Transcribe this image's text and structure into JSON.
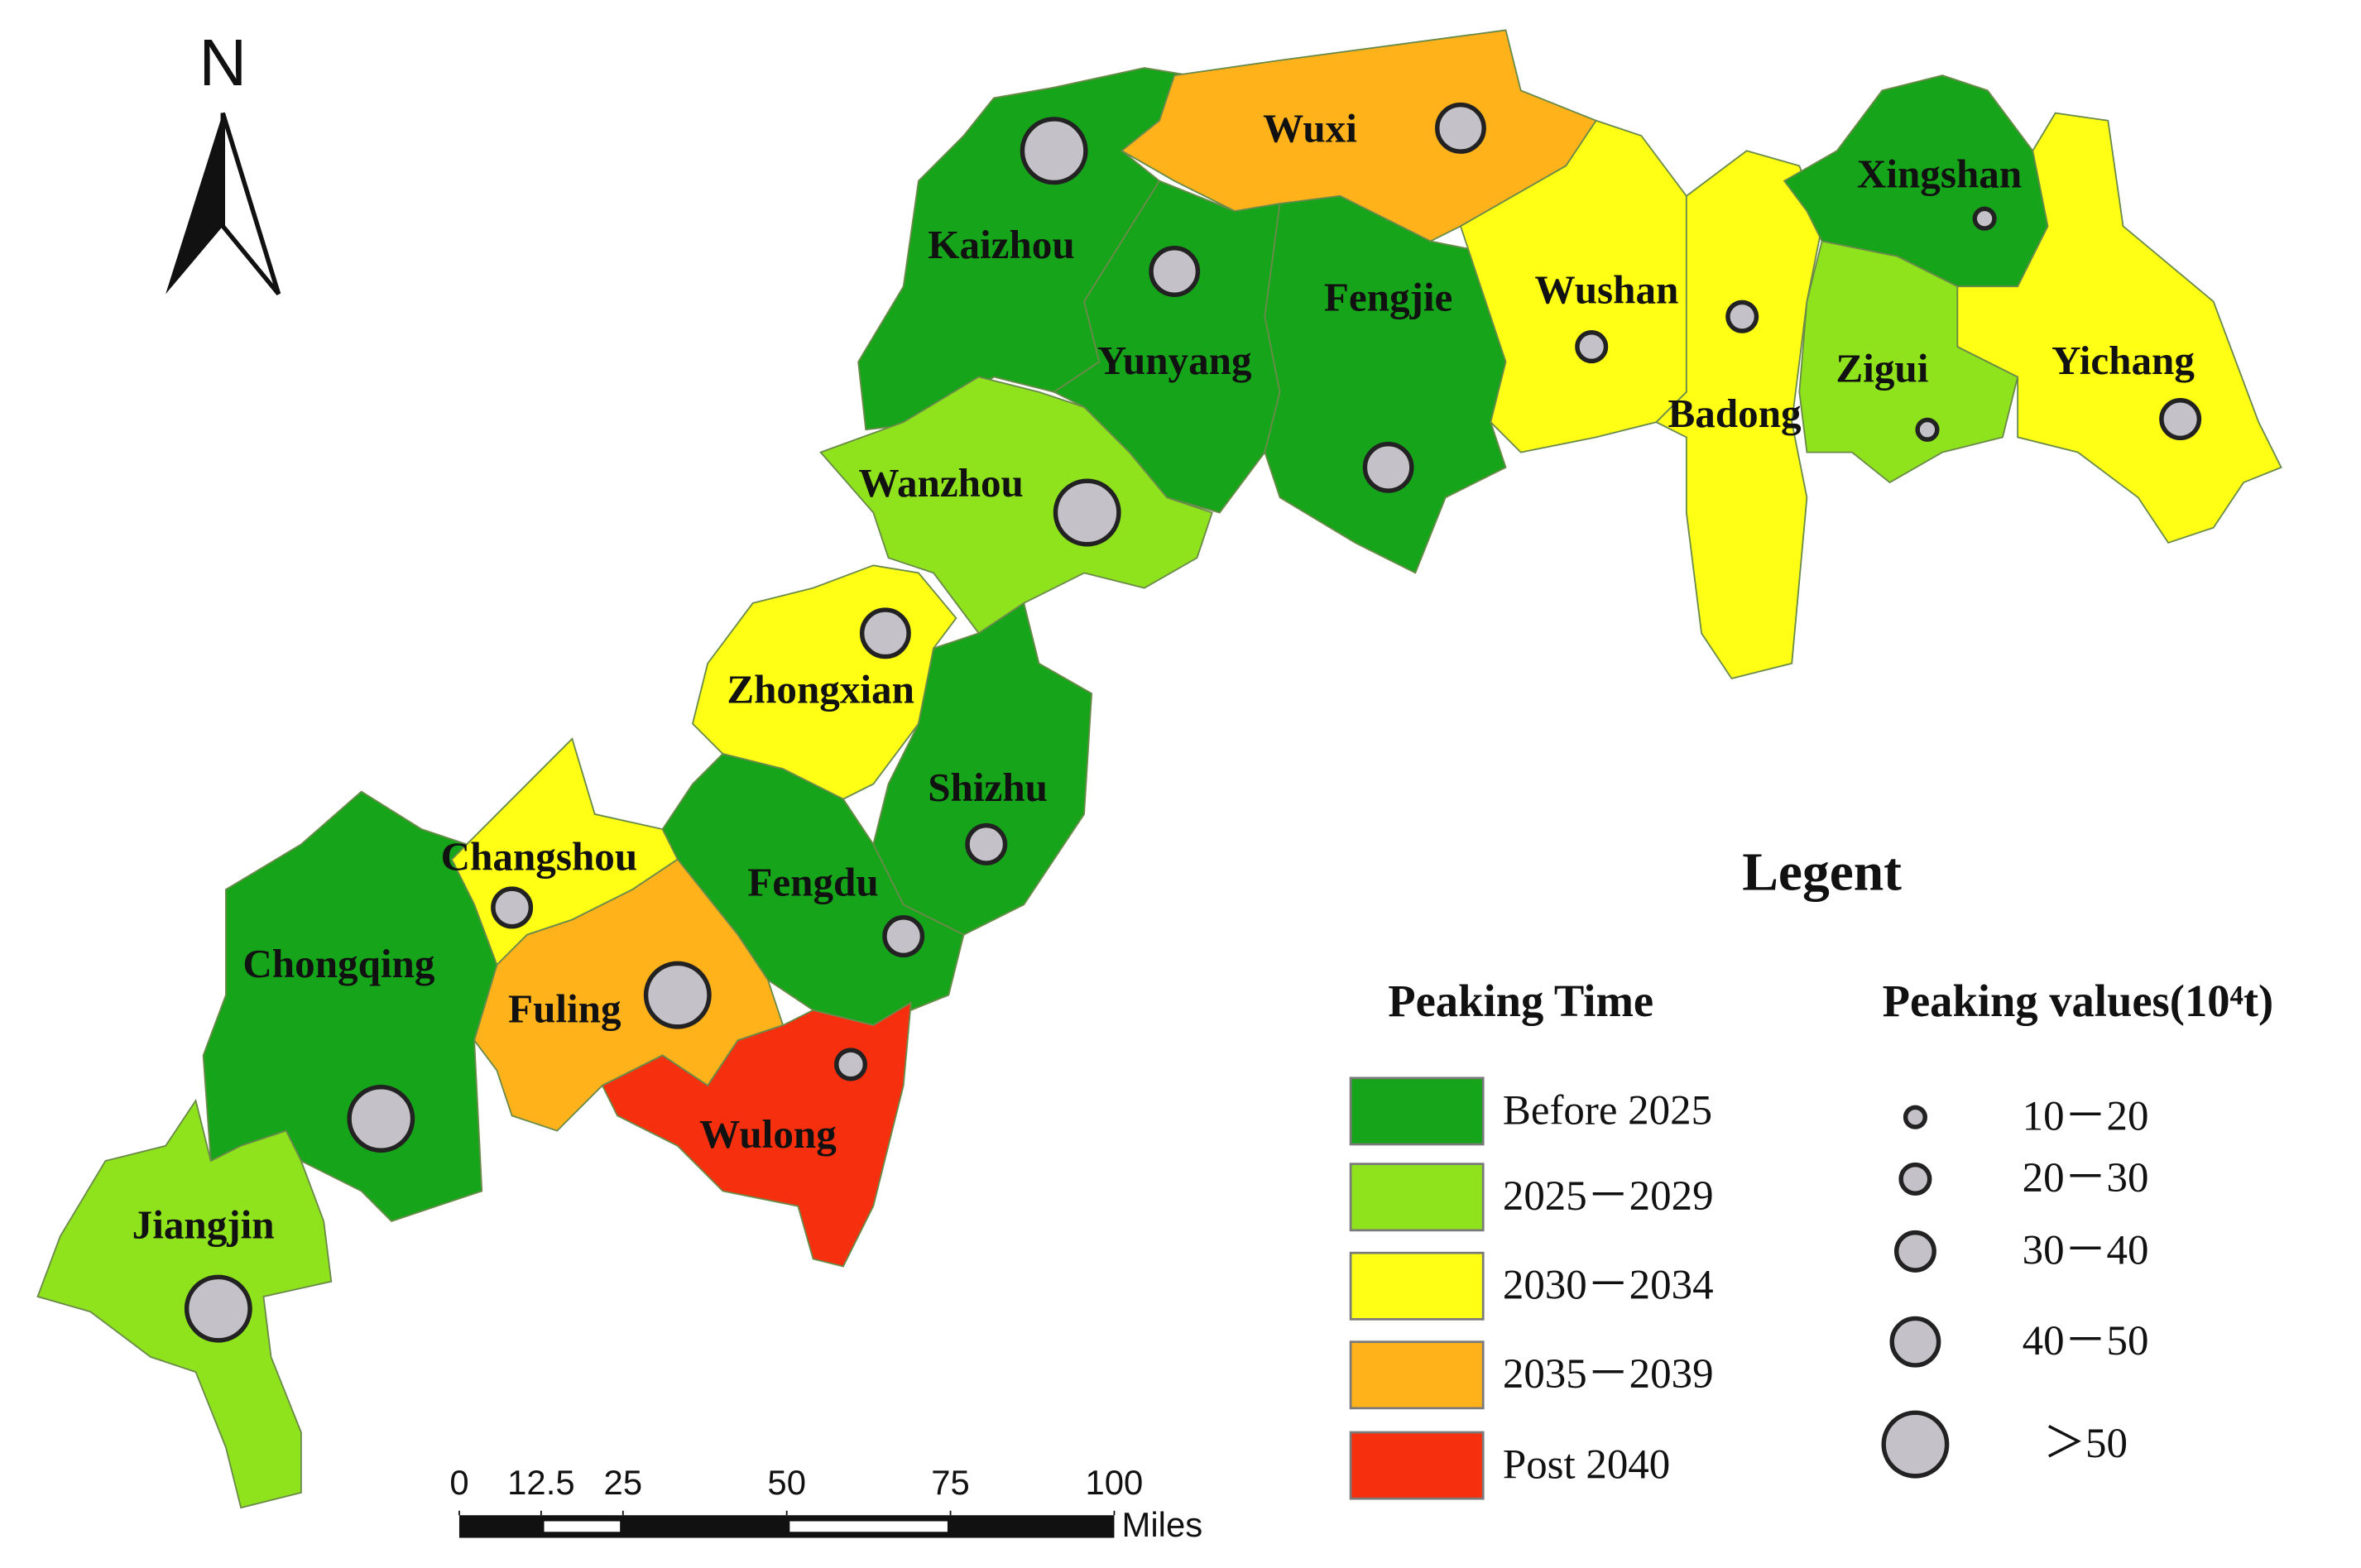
{
  "north": "N",
  "regions": [
    {
      "name": "Kaizhou",
      "time": "Before 2025",
      "value": "＞50"
    },
    {
      "name": "Wuxi",
      "time": "2035－2039",
      "value": "40－50"
    },
    {
      "name": "Yunyang",
      "time": "Before 2025",
      "value": "40－50"
    },
    {
      "name": "Fengjie",
      "time": "Before 2025",
      "value": "40－50"
    },
    {
      "name": "Wushan",
      "time": "2030－2034",
      "value": "20－30"
    },
    {
      "name": "Badong",
      "time": "2030－2034",
      "value": "20－30"
    },
    {
      "name": "Xingshan",
      "time": "Before 2025",
      "value": "10－20"
    },
    {
      "name": "Zigui",
      "time": "2025－2029",
      "value": "10－20"
    },
    {
      "name": "Yichang",
      "time": "2030－2034",
      "value": "30－40"
    },
    {
      "name": "Wanzhou",
      "time": "2025－2029",
      "value": "＞50"
    },
    {
      "name": "Zhongxian",
      "time": "2030－2034",
      "value": "40－50"
    },
    {
      "name": "Shizhu",
      "time": "Before 2025",
      "value": "30－40"
    },
    {
      "name": "Fengdu",
      "time": "Before 2025",
      "value": "30－40"
    },
    {
      "name": "Changshou",
      "time": "2030－2034",
      "value": "30－40"
    },
    {
      "name": "Fuling",
      "time": "2035－2039",
      "value": "＞50"
    },
    {
      "name": "Wulong",
      "time": "Post  2040",
      "value": "20－30"
    },
    {
      "name": "Chongqing",
      "time": "Before 2025",
      "value": "＞50"
    },
    {
      "name": "Jiangjin",
      "time": "2025－2029",
      "value": "＞50"
    }
  ],
  "legend": {
    "title": "Legent",
    "time_title": "Peaking Time",
    "time_items": [
      {
        "label": "Before 2025",
        "color": "#16a51a"
      },
      {
        "label": "2025－2029",
        "color": "#8fe31c"
      },
      {
        "label": "2030－2034",
        "color": "#ffff16"
      },
      {
        "label": "2035－2039",
        "color": "#ffb21a"
      },
      {
        "label": "Post  2040",
        "color": "#f6300e"
      }
    ],
    "value_title": "Peaking values(10⁴t)",
    "value_items": [
      "10－20",
      "20－30",
      "30－40",
      "40－50",
      "＞50"
    ]
  },
  "scale_bar": {
    "ticks": [
      0,
      12.5,
      25,
      50,
      75,
      100
    ],
    "unit": "Miles"
  }
}
